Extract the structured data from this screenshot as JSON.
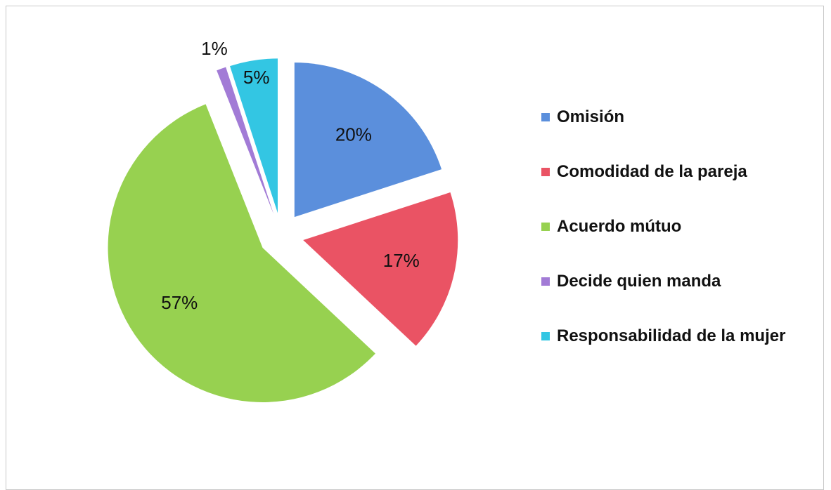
{
  "chart_data": {
    "type": "pie",
    "categories": [
      "Omisión",
      "Comodidad de la pareja",
      "Acuerdo mútuo",
      "Decide quien manda",
      "Responsabilidad de la mujer"
    ],
    "values": [
      20,
      17,
      57,
      1,
      5
    ],
    "value_labels": [
      "20%",
      "17%",
      "57%",
      "1%",
      "5%"
    ],
    "colors": [
      "#5b8fdc",
      "#ea5364",
      "#97d150",
      "#a27bd6",
      "#33c6e3"
    ],
    "legend": "right"
  }
}
